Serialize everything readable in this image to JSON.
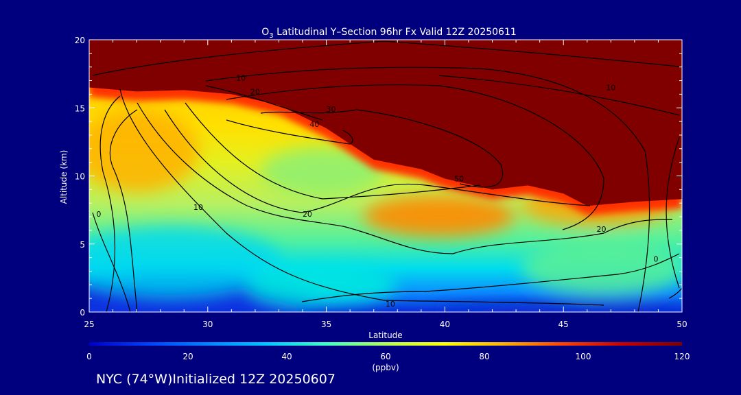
{
  "chart_data": {
    "type": "heatmap",
    "title": "Latitudinal Y–Section 96hr  Fx Valid 12Z 20250611",
    "title_species": {
      "base": "O",
      "subscript": "3"
    },
    "xlabel": "Latitude",
    "ylabel": "Altitude (km)",
    "xlim": [
      25,
      50
    ],
    "ylim": [
      0,
      20
    ],
    "x_ticks": [
      25,
      30,
      35,
      40,
      45,
      50
    ],
    "y_ticks": [
      0,
      5,
      10,
      15,
      20
    ],
    "colorbar": {
      "label": "(ppbv)",
      "range": [
        0,
        120
      ],
      "ticks": [
        0,
        20,
        40,
        60,
        80,
        100,
        120
      ],
      "colors": [
        "#0000c8",
        "#0050ff",
        "#00c8ff",
        "#40ffc0",
        "#c8ff40",
        "#ffff00",
        "#ffb000",
        "#ff4000",
        "#c80000",
        "#7f0000"
      ]
    },
    "tropopause_km": [
      [
        25,
        16.5
      ],
      [
        27,
        16.2
      ],
      [
        29,
        16.3
      ],
      [
        31,
        16.0
      ],
      [
        33,
        15.2
      ],
      [
        35,
        13.5
      ],
      [
        37,
        11.2
      ],
      [
        39,
        10.5
      ],
      [
        40,
        9.8
      ],
      [
        42,
        9.0
      ],
      [
        43.5,
        9.3
      ],
      [
        45,
        8.7
      ],
      [
        46,
        7.8
      ],
      [
        48,
        8.1
      ],
      [
        50,
        8.3
      ]
    ],
    "contour_labels": [
      {
        "text": "0",
        "x": 25.4,
        "y": 7.2
      },
      {
        "text": "10",
        "x": 29.6,
        "y": 7.7
      },
      {
        "text": "20",
        "x": 34.2,
        "y": 7.2
      },
      {
        "text": "10",
        "x": 37.7,
        "y": 0.6
      },
      {
        "text": "40",
        "x": 34.5,
        "y": 13.8
      },
      {
        "text": "30",
        "x": 35.2,
        "y": 14.9
      },
      {
        "text": "20",
        "x": 32.0,
        "y": 16.2
      },
      {
        "text": "10",
        "x": 31.4,
        "y": 17.2
      },
      {
        "text": "50",
        "x": 40.6,
        "y": 9.8
      },
      {
        "text": "10",
        "x": 47.0,
        "y": 16.5
      },
      {
        "text": "20",
        "x": 46.6,
        "y": 6.1
      },
      {
        "text": "0",
        "x": 48.9,
        "y": 3.9
      }
    ]
  },
  "footer": "NYC (74°W)Initialized 12Z 20250607"
}
